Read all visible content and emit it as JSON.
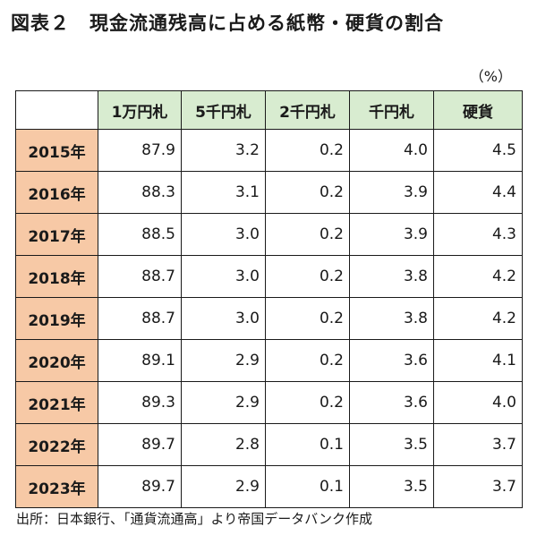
{
  "title": {
    "figure_no": "図表２",
    "text": "現金流通残高に占める紙幣・硬貨の割合"
  },
  "unit": "（%）",
  "source": "出所：日本銀行、「通貨流通高」より帝国データバンク作成",
  "chart_data": {
    "type": "table",
    "columns": [
      "1万円札",
      "5千円札",
      "2千円札",
      "千円札",
      "硬貨"
    ],
    "rows": [
      {
        "year": "2015年",
        "values": [
          "87.9",
          "3.2",
          "0.2",
          "4.0",
          "4.5"
        ]
      },
      {
        "year": "2016年",
        "values": [
          "88.3",
          "3.1",
          "0.2",
          "3.9",
          "4.4"
        ]
      },
      {
        "year": "2017年",
        "values": [
          "88.5",
          "3.0",
          "0.2",
          "3.9",
          "4.3"
        ]
      },
      {
        "year": "2018年",
        "values": [
          "88.7",
          "3.0",
          "0.2",
          "3.8",
          "4.2"
        ]
      },
      {
        "year": "2019年",
        "values": [
          "88.7",
          "3.0",
          "0.2",
          "3.8",
          "4.2"
        ]
      },
      {
        "year": "2020年",
        "values": [
          "89.1",
          "2.9",
          "0.2",
          "3.6",
          "4.1"
        ]
      },
      {
        "year": "2021年",
        "values": [
          "89.3",
          "2.9",
          "0.2",
          "3.6",
          "4.0"
        ]
      },
      {
        "year": "2022年",
        "values": [
          "89.7",
          "2.8",
          "0.1",
          "3.5",
          "3.7"
        ]
      },
      {
        "year": "2023年",
        "values": [
          "89.7",
          "2.9",
          "0.1",
          "3.5",
          "3.7"
        ]
      }
    ]
  },
  "colors": {
    "header_fill": "#d8ecd0",
    "year_fill": "#f7c9a6",
    "border": "#1a1a1a"
  }
}
